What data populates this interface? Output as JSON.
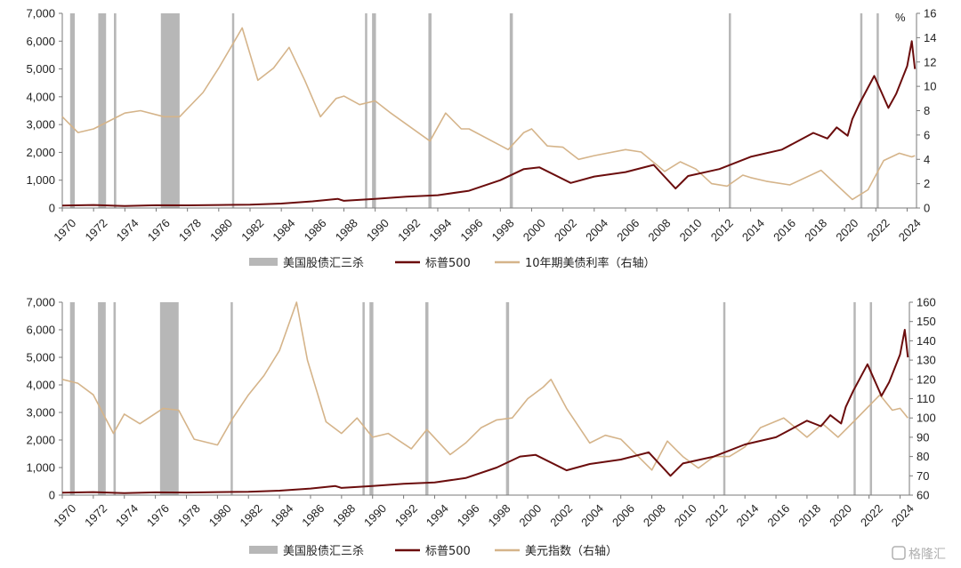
{
  "chart_data": [
    {
      "type": "line",
      "unit_right": "%",
      "x_range": [
        1970,
        2024.6
      ],
      "x_ticks": [
        "1970",
        "1972",
        "1974",
        "1976",
        "1978",
        "1980",
        "1982",
        "1984",
        "1986",
        "1988",
        "1990",
        "1992",
        "1994",
        "1996",
        "1998",
        "2000",
        "2002",
        "2004",
        "2006",
        "2008",
        "2010",
        "2012",
        "2014",
        "2016",
        "2018",
        "2020",
        "2022",
        "2024"
      ],
      "y_left": {
        "min": 0,
        "max": 7000,
        "ticks": [
          "0",
          "1,000",
          "2,000",
          "3,000",
          "4,000",
          "5,000",
          "6,000",
          "7,000"
        ]
      },
      "y_right": {
        "min": 0,
        "max": 16,
        "ticks": [
          "0",
          "2",
          "4",
          "6",
          "8",
          "10",
          "12",
          "14",
          "16"
        ]
      },
      "legend": [
        "美国股债汇三杀",
        "标普500",
        "10年期美债利率（右轴）"
      ],
      "colors": {
        "shade": "#b7b7b7",
        "spx": "#6b0d0d",
        "rate": "#d5b48a"
      },
      "shaded_periods": [
        [
          1970.5,
          1970.8
        ],
        [
          1972.3,
          1972.8
        ],
        [
          1973.3,
          1973.45
        ],
        [
          1976.3,
          1977.5
        ],
        [
          1980.85,
          1980.95
        ],
        [
          1989.35,
          1989.45
        ],
        [
          1989.8,
          1990.05
        ],
        [
          1993.4,
          1993.6
        ],
        [
          1998.6,
          1998.8
        ],
        [
          2012.6,
          2012.65
        ],
        [
          2021.0,
          2021.05
        ],
        [
          2022.05,
          2022.1
        ]
      ],
      "series": [
        {
          "name": "标普500",
          "axis": "left",
          "x": [
            1970,
            1972,
            1974,
            1976,
            1978,
            1980,
            1982,
            1984,
            1986,
            1987.6,
            1988,
            1990,
            1992,
            1994,
            1996,
            1998,
            1999.5,
            2000.5,
            2002.5,
            2004,
            2006,
            2007.8,
            2009.2,
            2010,
            2012,
            2014,
            2016,
            2018,
            2018.9,
            2019.5,
            2020.2,
            2020.5,
            2021,
            2021.9,
            2022.8,
            2023.3,
            2024,
            2024.3,
            2024.5
          ],
          "y": [
            90,
            110,
            70,
            100,
            95,
            110,
            120,
            160,
            240,
            330,
            260,
            330,
            410,
            460,
            620,
            1000,
            1400,
            1460,
            900,
            1130,
            1290,
            1550,
            700,
            1150,
            1400,
            1840,
            2100,
            2700,
            2500,
            2900,
            2600,
            3200,
            3800,
            4750,
            3600,
            4100,
            5100,
            6000,
            5000
          ]
        },
        {
          "name": "10年期美债利率（右轴）",
          "axis": "right",
          "x": [
            1970,
            1971,
            1972,
            1974,
            1975,
            1976.5,
            1977.5,
            1979,
            1980,
            1981.5,
            1982.5,
            1983.5,
            1984.5,
            1985.5,
            1986.5,
            1987.5,
            1988,
            1989,
            1990,
            1991,
            1993.5,
            1994.5,
            1995.5,
            1996,
            1998.5,
            1999.5,
            2000,
            2001,
            2002,
            2003,
            2004,
            2006,
            2007,
            2008.5,
            2009.5,
            2010.5,
            2011.5,
            2012.5,
            2013.5,
            2014,
            2015,
            2016.5,
            2018.5,
            2019.5,
            2020.5,
            2021.5,
            2022.5,
            2023.5,
            2024.3,
            2024.5
          ],
          "y": [
            7.5,
            6.2,
            6.5,
            7.8,
            8.0,
            7.5,
            7.5,
            9.5,
            11.5,
            14.8,
            10.5,
            11.5,
            13.2,
            10.5,
            7.5,
            9.0,
            9.2,
            8.5,
            8.8,
            7.8,
            5.5,
            7.8,
            6.5,
            6.5,
            4.8,
            6.2,
            6.5,
            5.1,
            5.0,
            4.0,
            4.3,
            4.8,
            4.6,
            3.0,
            3.8,
            3.2,
            2.0,
            1.8,
            2.7,
            2.5,
            2.2,
            1.9,
            3.1,
            1.9,
            0.7,
            1.5,
            3.9,
            4.5,
            4.2,
            4.3
          ]
        }
      ]
    },
    {
      "type": "line",
      "x_range": [
        1970,
        2024.6
      ],
      "x_ticks": [
        "1970",
        "1972",
        "1974",
        "1976",
        "1978",
        "1980",
        "1982",
        "1984",
        "1986",
        "1988",
        "1990",
        "1992",
        "1994",
        "1996",
        "1998",
        "2000",
        "2002",
        "2004",
        "2006",
        "2008",
        "2010",
        "2012",
        "2014",
        "2016",
        "2018",
        "2020",
        "2022",
        "2024"
      ],
      "y_left": {
        "min": 0,
        "max": 7000,
        "ticks": [
          "0",
          "1,000",
          "2,000",
          "3,000",
          "4,000",
          "5,000",
          "6,000",
          "7,000"
        ]
      },
      "y_right": {
        "min": 60,
        "max": 160,
        "ticks": [
          "60",
          "70",
          "80",
          "90",
          "100",
          "110",
          "120",
          "130",
          "140",
          "150",
          "160"
        ]
      },
      "legend": [
        "美国股债汇三杀",
        "标普500",
        "美元指数（右轴）"
      ],
      "colors": {
        "shade": "#b7b7b7",
        "spx": "#6b0d0d",
        "dxy": "#d5b48a"
      },
      "shaded_periods": [
        [
          1970.5,
          1970.8
        ],
        [
          1972.3,
          1972.8
        ],
        [
          1973.3,
          1973.45
        ],
        [
          1976.3,
          1977.5
        ],
        [
          1980.85,
          1980.95
        ],
        [
          1989.35,
          1989.45
        ],
        [
          1989.8,
          1990.05
        ],
        [
          1993.4,
          1993.6
        ],
        [
          1998.6,
          1998.8
        ],
        [
          2012.6,
          2012.65
        ],
        [
          2021.0,
          2021.05
        ],
        [
          2022.05,
          2022.1
        ]
      ],
      "series": [
        {
          "name": "标普500",
          "axis": "left",
          "x": [
            1970,
            1972,
            1974,
            1976,
            1978,
            1980,
            1982,
            1984,
            1986,
            1987.6,
            1988,
            1990,
            1992,
            1994,
            1996,
            1998,
            1999.5,
            2000.5,
            2002.5,
            2004,
            2006,
            2007.8,
            2009.2,
            2010,
            2012,
            2014,
            2016,
            2018,
            2018.9,
            2019.5,
            2020.2,
            2020.5,
            2021,
            2021.9,
            2022.8,
            2023.3,
            2024,
            2024.3,
            2024.5
          ],
          "y": [
            90,
            110,
            70,
            100,
            95,
            110,
            120,
            160,
            240,
            330,
            260,
            330,
            410,
            460,
            620,
            1000,
            1400,
            1460,
            900,
            1130,
            1290,
            1550,
            700,
            1150,
            1400,
            1840,
            2100,
            2700,
            2500,
            2900,
            2600,
            3200,
            3800,
            4750,
            3600,
            4100,
            5100,
            6000,
            5000
          ]
        },
        {
          "name": "美元指数（右轴）",
          "axis": "right",
          "x": [
            1970,
            1971,
            1972,
            1973.3,
            1974,
            1975,
            1976.5,
            1977.5,
            1978.5,
            1980,
            1981,
            1982,
            1983,
            1984,
            1985.1,
            1985.8,
            1987,
            1988,
            1989,
            1990,
            1991,
            1992.5,
            1993.5,
            1995,
            1996,
            1997,
            1998,
            1999,
            2000,
            2001,
            2001.5,
            2002.5,
            2004,
            2005,
            2006,
            2008,
            2009,
            2010,
            2011,
            2012,
            2013,
            2014,
            2015,
            2016.5,
            2018,
            2019,
            2020,
            2021,
            2022.7,
            2023.5,
            2024,
            2024.5
          ],
          "y": [
            120,
            118,
            112,
            92,
            102,
            97,
            105,
            104,
            89,
            86,
            100,
            112,
            122,
            135,
            160,
            130,
            98,
            92,
            100,
            90,
            92,
            84,
            94,
            81,
            87,
            95,
            99,
            100,
            110,
            116,
            120,
            105,
            87,
            91,
            89,
            73,
            88,
            80,
            74,
            80,
            80,
            85,
            95,
            100,
            90,
            97,
            90,
            98,
            112,
            104,
            105,
            100
          ]
        }
      ]
    }
  ],
  "watermark": "格隆汇"
}
